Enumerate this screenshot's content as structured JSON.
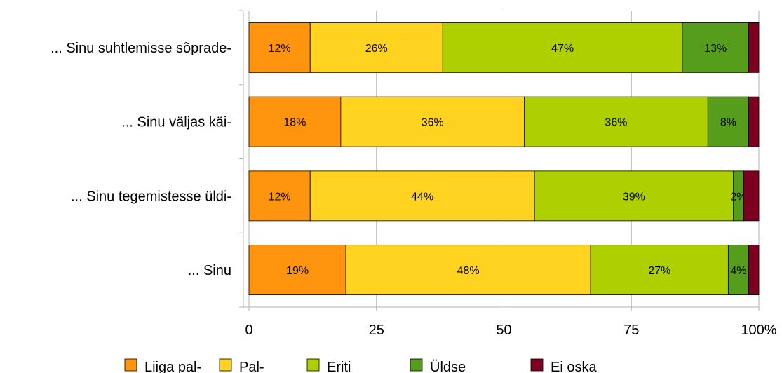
{
  "chart_data": {
    "type": "bar",
    "orientation": "horizontal",
    "stacked": true,
    "title": "",
    "xlabel": "",
    "ylabel": "",
    "xlim": [
      0,
      100
    ],
    "x_ticks": [
      "0",
      "25",
      "50",
      "75",
      "100%"
    ],
    "grid": true,
    "legend_position": "bottom",
    "categories": [
      "... Sinu suhtlemisse sõprade-",
      "... Sinu väljas käi-",
      "... Sinu tegemistesse üldi-",
      "... Sinu"
    ],
    "series": [
      {
        "name": "Liiga pal-",
        "color": "#ff950e",
        "values": [
          12,
          18,
          12,
          19
        ],
        "labels": [
          "12%",
          "18%",
          "12%",
          "19%"
        ]
      },
      {
        "name": "Pal-",
        "color": "#ffd320",
        "values": [
          26,
          36,
          44,
          48
        ],
        "labels": [
          "26%",
          "36%",
          "44%",
          "48%"
        ]
      },
      {
        "name": "Eriti",
        "color": "#aecf00",
        "values": [
          47,
          36,
          39,
          27
        ],
        "labels": [
          "47%",
          "36%",
          "39%",
          "27%"
        ]
      },
      {
        "name": "Üldse",
        "color": "#579d1c",
        "values": [
          13,
          8,
          2,
          4
        ],
        "labels": [
          "13%",
          "8%",
          "2%",
          "4%"
        ]
      },
      {
        "name": "Ei oska",
        "color": "#7e0021",
        "values": [
          2,
          2,
          3,
          2
        ],
        "labels": [
          "",
          "",
          "",
          ""
        ]
      }
    ]
  }
}
